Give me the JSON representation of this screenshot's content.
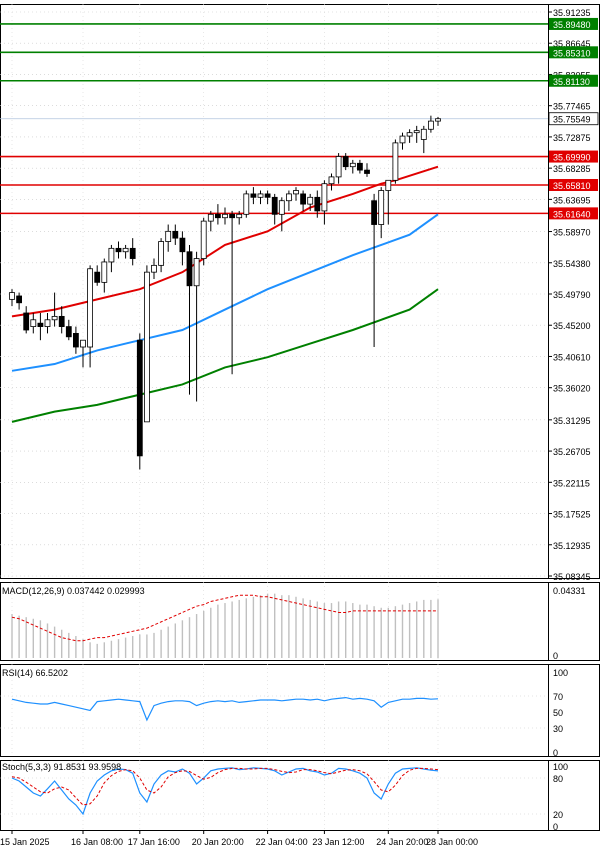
{
  "chart_data": {
    "type": "candlestick",
    "main_panel": {
      "y_ticks": [
        "35.91235",
        "35.86645",
        "35.82055",
        "35.77465",
        "35.72875",
        "35.68285",
        "35.63695",
        "35.58970",
        "35.54380",
        "35.49790",
        "35.45200",
        "35.40610",
        "35.36020",
        "35.31295",
        "35.26705",
        "35.22115",
        "35.17525",
        "35.12935",
        "35.08345"
      ],
      "ylim": [
        35.08345,
        35.91235
      ],
      "current_price": "35.75549",
      "horizontal_levels": [
        {
          "label": "35.89480",
          "value": 35.8948,
          "color": "#008000"
        },
        {
          "label": "35.85310",
          "value": 35.8531,
          "color": "#008000"
        },
        {
          "label": "35.81130",
          "value": 35.8113,
          "color": "#008000"
        },
        {
          "label": "35.69990",
          "value": 35.6999,
          "color": "#e00000"
        },
        {
          "label": "35.65810",
          "value": 35.6581,
          "color": "#e00000"
        },
        {
          "label": "35.61640",
          "value": 35.6164,
          "color": "#e00000"
        }
      ],
      "candles": [
        {
          "o": 35.49,
          "h": 35.505,
          "l": 35.48,
          "c": 35.5
        },
        {
          "o": 35.495,
          "h": 35.5,
          "l": 35.475,
          "c": 35.485
        },
        {
          "o": 35.47,
          "h": 35.48,
          "l": 35.44,
          "c": 35.445
        },
        {
          "o": 35.45,
          "h": 35.47,
          "l": 35.44,
          "c": 35.46
        },
        {
          "o": 35.455,
          "h": 35.47,
          "l": 35.43,
          "c": 35.45
        },
        {
          "o": 35.45,
          "h": 35.47,
          "l": 35.44,
          "c": 35.46
        },
        {
          "o": 35.46,
          "h": 35.5,
          "l": 35.45,
          "c": 35.465
        },
        {
          "o": 35.465,
          "h": 35.48,
          "l": 35.44,
          "c": 35.45
        },
        {
          "o": 35.45,
          "h": 35.46,
          "l": 35.43,
          "c": 35.435
        },
        {
          "o": 35.44,
          "h": 35.45,
          "l": 35.41,
          "c": 35.42
        },
        {
          "o": 35.42,
          "h": 35.43,
          "l": 35.39,
          "c": 35.43
        },
        {
          "o": 35.42,
          "h": 35.54,
          "l": 35.39,
          "c": 35.535
        },
        {
          "o": 35.53,
          "h": 35.54,
          "l": 35.51,
          "c": 35.515
        },
        {
          "o": 35.515,
          "h": 35.55,
          "l": 35.5,
          "c": 35.545
        },
        {
          "o": 35.545,
          "h": 35.57,
          "l": 35.53,
          "c": 35.565
        },
        {
          "o": 35.565,
          "h": 35.575,
          "l": 35.55,
          "c": 35.56
        },
        {
          "o": 35.56,
          "h": 35.57,
          "l": 35.55,
          "c": 35.565
        },
        {
          "o": 35.565,
          "h": 35.58,
          "l": 35.54,
          "c": 35.55
        },
        {
          "o": 35.43,
          "h": 35.44,
          "l": 35.24,
          "c": 35.26
        },
        {
          "o": 35.31,
          "h": 35.54,
          "l": 35.31,
          "c": 35.53
        },
        {
          "o": 35.53,
          "h": 35.55,
          "l": 35.52,
          "c": 35.54
        },
        {
          "o": 35.54,
          "h": 35.58,
          "l": 35.53,
          "c": 35.575
        },
        {
          "o": 35.575,
          "h": 35.6,
          "l": 35.56,
          "c": 35.59
        },
        {
          "o": 35.59,
          "h": 35.6,
          "l": 35.57,
          "c": 35.58
        },
        {
          "o": 35.58,
          "h": 35.59,
          "l": 35.54,
          "c": 35.56
        },
        {
          "o": 35.56,
          "h": 35.57,
          "l": 35.35,
          "c": 35.51
        },
        {
          "o": 35.51,
          "h": 35.56,
          "l": 35.34,
          "c": 35.55
        },
        {
          "o": 35.55,
          "h": 35.61,
          "l": 35.54,
          "c": 35.605
        },
        {
          "o": 35.605,
          "h": 35.62,
          "l": 35.59,
          "c": 35.615
        },
        {
          "o": 35.615,
          "h": 35.63,
          "l": 35.6,
          "c": 35.61
        },
        {
          "o": 35.61,
          "h": 35.625,
          "l": 35.6,
          "c": 35.615
        },
        {
          "o": 35.615,
          "h": 35.62,
          "l": 35.38,
          "c": 35.61
        },
        {
          "o": 35.61,
          "h": 35.62,
          "l": 35.6,
          "c": 35.615
        },
        {
          "o": 35.615,
          "h": 35.65,
          "l": 35.61,
          "c": 35.645
        },
        {
          "o": 35.645,
          "h": 35.655,
          "l": 35.63,
          "c": 35.64
        },
        {
          "o": 35.64,
          "h": 35.65,
          "l": 35.63,
          "c": 35.645
        },
        {
          "o": 35.645,
          "h": 35.65,
          "l": 35.63,
          "c": 35.64
        },
        {
          "o": 35.64,
          "h": 35.645,
          "l": 35.6,
          "c": 35.615
        },
        {
          "o": 35.615,
          "h": 35.64,
          "l": 35.59,
          "c": 35.635
        },
        {
          "o": 35.635,
          "h": 35.65,
          "l": 35.62,
          "c": 35.645
        },
        {
          "o": 35.645,
          "h": 35.655,
          "l": 35.635,
          "c": 35.65
        },
        {
          "o": 35.645,
          "h": 35.65,
          "l": 35.62,
          "c": 35.63
        },
        {
          "o": 35.63,
          "h": 35.645,
          "l": 35.62,
          "c": 35.64
        },
        {
          "o": 35.64,
          "h": 35.65,
          "l": 35.61,
          "c": 35.62
        },
        {
          "o": 35.62,
          "h": 35.665,
          "l": 35.6,
          "c": 35.66
        },
        {
          "o": 35.66,
          "h": 35.675,
          "l": 35.65,
          "c": 35.67
        },
        {
          "o": 35.67,
          "h": 35.705,
          "l": 35.66,
          "c": 35.7
        },
        {
          "o": 35.7,
          "h": 35.705,
          "l": 35.68,
          "c": 35.685
        },
        {
          "o": 35.685,
          "h": 35.695,
          "l": 35.675,
          "c": 35.69
        },
        {
          "o": 35.69,
          "h": 35.695,
          "l": 35.675,
          "c": 35.68
        },
        {
          "o": 35.68,
          "h": 35.69,
          "l": 35.67,
          "c": 35.675
        },
        {
          "o": 35.635,
          "h": 35.645,
          "l": 35.42,
          "c": 35.6
        },
        {
          "o": 35.6,
          "h": 35.655,
          "l": 35.58,
          "c": 35.65
        },
        {
          "o": 35.65,
          "h": 35.66,
          "l": 35.6,
          "c": 35.665
        },
        {
          "o": 35.665,
          "h": 35.725,
          "l": 35.66,
          "c": 35.72
        },
        {
          "o": 35.72,
          "h": 35.735,
          "l": 35.71,
          "c": 35.73
        },
        {
          "o": 35.73,
          "h": 35.74,
          "l": 35.72,
          "c": 35.735
        },
        {
          "o": 35.735,
          "h": 35.745,
          "l": 35.72,
          "c": 35.738
        },
        {
          "o": 35.725,
          "h": 35.745,
          "l": 35.705,
          "c": 35.74
        },
        {
          "o": 35.74,
          "h": 35.76,
          "l": 35.735,
          "c": 35.752
        },
        {
          "o": 35.752,
          "h": 35.758,
          "l": 35.745,
          "c": 35.7555
        }
      ],
      "moving_averages": [
        {
          "color": "#e00000",
          "points": [
            [
              0,
              35.465
            ],
            [
              6,
              35.475
            ],
            [
              12,
              35.49
            ],
            [
              18,
              35.505
            ],
            [
              24,
              35.53
            ],
            [
              30,
              35.57
            ],
            [
              36,
              35.59
            ],
            [
              42,
              35.625
            ],
            [
              48,
              35.645
            ],
            [
              52,
              35.66
            ],
            [
              54,
              35.665
            ],
            [
              60,
              35.685
            ]
          ]
        },
        {
          "color": "#1e90ff",
          "points": [
            [
              0,
              35.385
            ],
            [
              6,
              35.395
            ],
            [
              12,
              35.415
            ],
            [
              18,
              35.43
            ],
            [
              24,
              35.445
            ],
            [
              30,
              35.475
            ],
            [
              36,
              35.505
            ],
            [
              42,
              35.53
            ],
            [
              48,
              35.555
            ],
            [
              52,
              35.57
            ],
            [
              56,
              35.585
            ],
            [
              60,
              35.615
            ]
          ]
        },
        {
          "color": "#008000",
          "points": [
            [
              0,
              35.31
            ],
            [
              6,
              35.325
            ],
            [
              12,
              35.335
            ],
            [
              18,
              35.35
            ],
            [
              24,
              35.365
            ],
            [
              30,
              35.39
            ],
            [
              36,
              35.405
            ],
            [
              42,
              35.425
            ],
            [
              48,
              35.445
            ],
            [
              52,
              35.46
            ],
            [
              56,
              35.475
            ],
            [
              60,
              35.505
            ]
          ]
        }
      ]
    },
    "macd_panel": {
      "label": "MACD(12,26,9) 0.037442 0.029993",
      "y_ticks": [
        "0.04331",
        "0"
      ],
      "ylim": [
        0,
        0.04331
      ],
      "histogram": [
        0.028,
        0.027,
        0.026,
        0.025,
        0.024,
        0.022,
        0.02,
        0.018,
        0.016,
        0.014,
        0.012,
        0.01,
        0.009,
        0.01,
        0.011,
        0.012,
        0.013,
        0.014,
        0.015,
        0.015,
        0.016,
        0.018,
        0.02,
        0.022,
        0.024,
        0.026,
        0.028,
        0.03,
        0.032,
        0.034,
        0.035,
        0.036,
        0.037,
        0.038,
        0.039,
        0.04,
        0.041,
        0.041,
        0.04,
        0.04,
        0.039,
        0.038,
        0.037,
        0.036,
        0.035,
        0.035,
        0.036,
        0.036,
        0.035,
        0.034,
        0.034,
        0.033,
        0.032,
        0.032,
        0.033,
        0.034,
        0.035,
        0.036,
        0.037,
        0.037,
        0.0374
      ],
      "signal": [
        0.026,
        0.025,
        0.023,
        0.021,
        0.019,
        0.017,
        0.015,
        0.013,
        0.012,
        0.011,
        0.011,
        0.012,
        0.013,
        0.013,
        0.014,
        0.015,
        0.016,
        0.017,
        0.018,
        0.019,
        0.021,
        0.023,
        0.025,
        0.027,
        0.029,
        0.031,
        0.033,
        0.034,
        0.036,
        0.037,
        0.038,
        0.039,
        0.04,
        0.04,
        0.04,
        0.039,
        0.039,
        0.038,
        0.037,
        0.036,
        0.035,
        0.034,
        0.033,
        0.032,
        0.031,
        0.03,
        0.029,
        0.029,
        0.03,
        0.03,
        0.03,
        0.03,
        0.03,
        0.03,
        0.03,
        0.03,
        0.03,
        0.03,
        0.03,
        0.03,
        0.03
      ]
    },
    "rsi_panel": {
      "label": "RSI(14) 66.5202",
      "y_ticks": [
        "100",
        "70",
        "50",
        "30",
        "0"
      ],
      "ylim": [
        0,
        100
      ],
      "values": [
        66,
        64,
        62,
        61,
        60,
        60,
        62,
        60,
        58,
        56,
        54,
        52,
        63,
        64,
        65,
        66,
        65,
        64,
        63,
        40,
        58,
        61,
        63,
        64,
        64,
        63,
        58,
        61,
        63,
        64,
        63,
        64,
        62,
        63,
        64,
        65,
        65,
        65,
        64,
        65,
        66,
        66,
        65,
        66,
        64,
        66,
        67,
        68,
        66,
        67,
        66,
        64,
        56,
        62,
        64,
        66,
        66,
        67,
        67,
        66,
        66.5
      ]
    },
    "stoch_panel": {
      "label": "Stoch(5,3,3) 91.8531 93.9598",
      "y_ticks": [
        "100",
        "80",
        "20",
        "0"
      ],
      "ylim": [
        0,
        100
      ],
      "k": [
        80,
        75,
        65,
        55,
        50,
        62,
        75,
        60,
        45,
        35,
        20,
        55,
        75,
        85,
        92,
        95,
        94,
        88,
        55,
        40,
        70,
        85,
        92,
        90,
        95,
        88,
        70,
        80,
        92,
        95,
        96,
        97,
        94,
        95,
        97,
        96,
        95,
        92,
        85,
        90,
        95,
        96,
        92,
        90,
        85,
        88,
        96,
        95,
        92,
        88,
        80,
        55,
        45,
        70,
        88,
        95,
        96,
        97,
        95,
        93,
        91.8531
      ],
      "d": [
        82,
        80,
        73,
        65,
        57,
        55,
        62,
        65,
        60,
        47,
        35,
        37,
        50,
        72,
        84,
        91,
        94,
        92,
        80,
        60,
        55,
        65,
        82,
        89,
        92,
        91,
        84,
        78,
        81,
        89,
        94,
        96,
        96,
        95,
        95,
        96,
        96,
        94,
        91,
        89,
        90,
        94,
        94,
        92,
        89,
        87,
        90,
        93,
        94,
        92,
        87,
        74,
        60,
        57,
        68,
        84,
        93,
        96,
        96,
        95,
        93.9598
      ]
    },
    "x_ticks": [
      {
        "index": 0,
        "label": "15 Jan 2025"
      },
      {
        "index": 10,
        "label": "16 Jan 08:00"
      },
      {
        "index": 18,
        "label": "17 Jan 16:00"
      },
      {
        "index": 27,
        "label": "20 Jan 20:00"
      },
      {
        "index": 36,
        "label": "22 Jan 04:00"
      },
      {
        "index": 44,
        "label": "23 Jan 12:00"
      },
      {
        "index": 53,
        "label": "24 Jan 20:00"
      },
      {
        "index": 60,
        "label": "28 Jan 00:00"
      }
    ],
    "colors": {
      "bull_body": "#ffffff",
      "bear_body": "#000000",
      "candle_outline": "#000000",
      "current_price_label_bg": "#ffffff",
      "macd_signal": "#e00000",
      "rsi_line": "#1e90ff",
      "stoch_k": "#1e90ff",
      "stoch_d": "#e00000"
    }
  }
}
